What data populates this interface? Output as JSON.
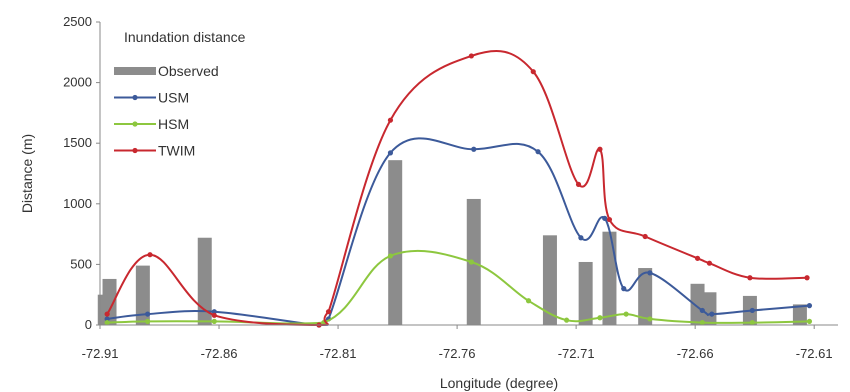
{
  "chart_data": {
    "type": "bar+line",
    "legend_title": "Inundation distance",
    "xlabel": "Longitude (degree)",
    "ylabel": "Distance (m)",
    "xlim": [
      -72.91,
      -72.6
    ],
    "ylim": [
      0,
      2500
    ],
    "xticks": [
      "-72.91",
      "-72.86",
      "-72.81",
      "-72.76",
      "-72.71",
      "-72.66",
      "-72.61"
    ],
    "xtick_values": [
      -72.91,
      -72.86,
      -72.81,
      -72.76,
      -72.71,
      -72.66,
      -72.61
    ],
    "yticks": [
      "0",
      "500",
      "1000",
      "1500",
      "2000",
      "2500"
    ],
    "ytick_values": [
      0,
      500,
      1000,
      1500,
      2000,
      2500
    ],
    "legend_position": "top-left",
    "grid": false,
    "bars": {
      "name": "Observed",
      "color": "#8c8c8c",
      "x": [
        -72.908,
        -72.906,
        -72.892,
        -72.866,
        -72.786,
        -72.753,
        -72.721,
        -72.706,
        -72.696,
        -72.681,
        -72.659,
        -72.654,
        -72.637,
        -72.616
      ],
      "values": [
        250,
        380,
        490,
        720,
        1360,
        1040,
        740,
        520,
        770,
        470,
        340,
        270,
        240,
        170
      ]
    },
    "series": [
      {
        "name": "USM",
        "color": "#3c5a9a",
        "x": [
          -72.907,
          -72.89,
          -72.862,
          -72.818,
          -72.814,
          -72.788,
          -72.753,
          -72.726,
          -72.708,
          -72.698,
          -72.69,
          -72.679,
          -72.657,
          -72.653,
          -72.636,
          -72.612
        ],
        "values": [
          50,
          90,
          110,
          0,
          50,
          1420,
          1450,
          1430,
          720,
          880,
          300,
          430,
          120,
          90,
          120,
          160
        ]
      },
      {
        "name": "HSM",
        "color": "#8dc73f",
        "x": [
          -72.907,
          -72.89,
          -72.862,
          -72.816,
          -72.788,
          -72.754,
          -72.73,
          -72.714,
          -72.7,
          -72.689,
          -72.679,
          -72.657,
          -72.636,
          -72.612
        ],
        "values": [
          20,
          30,
          30,
          20,
          570,
          520,
          200,
          40,
          60,
          90,
          50,
          20,
          20,
          30
        ]
      },
      {
        "name": "TWIM",
        "color": "#c8282f",
        "x": [
          -72.907,
          -72.889,
          -72.862,
          -72.818,
          -72.814,
          -72.788,
          -72.754,
          -72.728,
          -72.709,
          -72.7,
          -72.696,
          -72.681,
          -72.659,
          -72.654,
          -72.637,
          -72.613
        ],
        "values": [
          90,
          580,
          80,
          0,
          110,
          1690,
          2220,
          2090,
          1160,
          1450,
          870,
          730,
          550,
          510,
          390,
          390
        ]
      }
    ]
  }
}
